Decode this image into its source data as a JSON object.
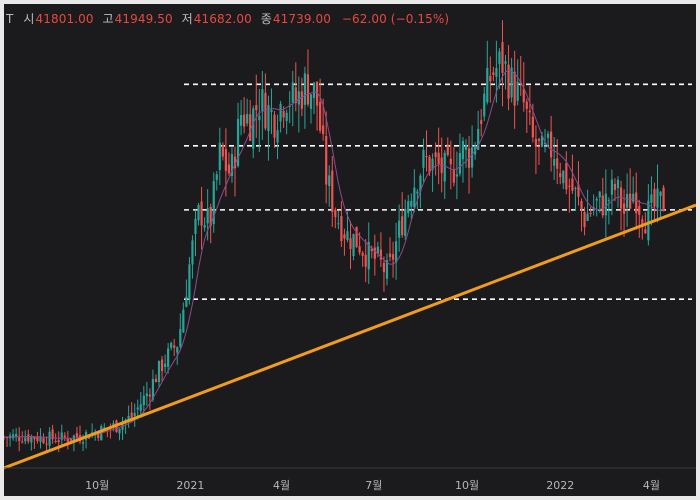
{
  "header": {
    "symbol_fragment": "T",
    "open_label": "시",
    "open_value": "41801.00",
    "high_label": "고",
    "high_value": "41949.50",
    "low_label": "저",
    "low_value": "41682.00",
    "close_label": "종",
    "close_value": "41739.00",
    "change": "−62.00 (−0.15%)"
  },
  "colors": {
    "background": "#1b1b1d",
    "up": "#26a69a",
    "down": "#ef5350",
    "trendline": "#f29c1f",
    "levels": "#ffffff",
    "moving_average": "#8e4a8e"
  },
  "chart_data": {
    "type": "line",
    "title": "",
    "xlabel": "",
    "ylabel": "",
    "x_tick_labels": [
      "10월",
      "2021",
      "4월",
      "7월",
      "10월",
      "2022",
      "4월"
    ],
    "x_ticks": [
      "2020-10-01",
      "2021-01-01",
      "2021-04-01",
      "2021-07-01",
      "2021-10-01",
      "2022-01-01",
      "2022-04-01"
    ],
    "x_range": [
      "2020-07-01",
      "2022-05-15"
    ],
    "y_range": [
      0,
      100
    ],
    "y_axis_visible": false,
    "grid": false,
    "series": [
      {
        "type": "line",
        "x": [
          "2020-07-01",
          "2020-07-20",
          "2020-08-10",
          "2020-08-25",
          "2020-09-15",
          "2020-10-01",
          "2020-10-20",
          "2020-11-05",
          "2020-11-20",
          "2020-12-05",
          "2020-12-20",
          "2021-01-01",
          "2021-01-10",
          "2021-01-20",
          "2021-01-30",
          "2021-02-10",
          "2021-02-20",
          "2021-03-01",
          "2021-03-10",
          "2021-03-25",
          "2021-04-05",
          "2021-04-15",
          "2021-04-25",
          "2021-05-05",
          "2021-05-15",
          "2021-05-25",
          "2021-06-05",
          "2021-06-15",
          "2021-06-25",
          "2021-07-05",
          "2021-07-15",
          "2021-07-25",
          "2021-08-05",
          "2021-08-20",
          "2021-09-01",
          "2021-09-15",
          "2021-09-25",
          "2021-10-05",
          "2021-10-15",
          "2021-10-25",
          "2021-11-05",
          "2021-11-15",
          "2021-11-25",
          "2021-12-05",
          "2021-12-15",
          "2021-12-25",
          "2022-01-05",
          "2022-01-15",
          "2022-01-25",
          "2022-02-05",
          "2022-02-15",
          "2022-02-25",
          "2022-03-05",
          "2022-03-15",
          "2022-03-25",
          "2022-04-05",
          "2022-04-15"
        ],
        "values": [
          7.0,
          7.2,
          6.8,
          6.6,
          7.3,
          8.2,
          9.6,
          11.7,
          17.2,
          23.9,
          28.5,
          47.4,
          58.4,
          54.9,
          70.7,
          66.3,
          80.2,
          78.8,
          83.0,
          79.4,
          84.4,
          82.9,
          86.8,
          84.4,
          65.8,
          57.1,
          52.6,
          51.3,
          48.2,
          46.9,
          43.8,
          52.6,
          62.4,
          69.5,
          68.4,
          66.3,
          72.1,
          71.1,
          80.5,
          89.2,
          91.8,
          86.3,
          83.0,
          73.7,
          70.7,
          72.5,
          65.6,
          62.2,
          56.6,
          59.7,
          60.2,
          63.6,
          57.7,
          62.9,
          56.6,
          59.1,
          60.4
        ]
      },
      {
        "name": "",
        "type": "trendline",
        "x": [
          "2020-07-01",
          "2022-05-15"
        ],
        "values": [
          0,
          59.5
        ]
      }
    ],
    "horizontal_levels": [
      86.8,
      72.9,
      58.4,
      38.2
    ]
  }
}
